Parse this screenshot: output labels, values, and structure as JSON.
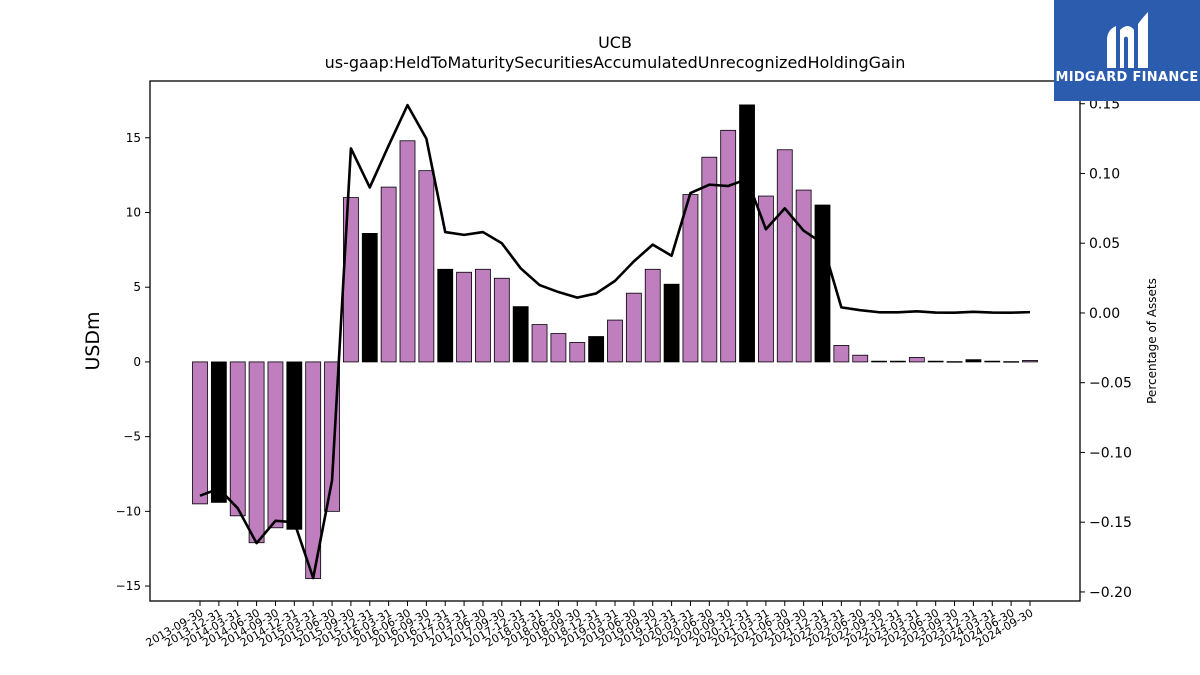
{
  "chart_data": {
    "type": "bar",
    "title": "UCB",
    "subtitle": "us-gaap:HeldToMaturitySecuritiesAccumulatedUnrecognizedHoldingGain",
    "ylabel": "USDm",
    "y2label": "Percentage of Assets",
    "ylim": [
      -16,
      18.8
    ],
    "y2lim": [
      -0.2065,
      0.1663
    ],
    "yticks": [
      -15,
      -10,
      -5,
      0,
      5,
      10,
      15
    ],
    "y2ticks": [
      -0.2,
      -0.15,
      -0.1,
      -0.05,
      0.0,
      0.05,
      0.1,
      0.15
    ],
    "y2tick_labels": [
      "−0.20",
      "−0.15",
      "−0.10",
      "−0.05",
      "0.00",
      "0.05",
      "0.10",
      "0.15"
    ],
    "ytick_labels": [
      "−15",
      "−10",
      "−5",
      "0",
      "5",
      "10",
      "15"
    ],
    "grid": false,
    "colors": {
      "bar": "#bf7fbf",
      "bar_highlight": "#000000",
      "line": "#000000"
    },
    "categories": [
      "2013-09-30",
      "2013-12-31",
      "2014-03-31",
      "2014-06-30",
      "2014-09-30",
      "2014-12-31",
      "2015-03-31",
      "2015-06-30",
      "2015-09-30",
      "2015-12-31",
      "2016-03-31",
      "2016-06-30",
      "2016-09-30",
      "2016-12-31",
      "2017-03-31",
      "2017-06-30",
      "2017-09-30",
      "2017-12-31",
      "2018-03-31",
      "2018-06-30",
      "2018-09-30",
      "2018-12-31",
      "2019-03-31",
      "2019-06-30",
      "2019-09-30",
      "2019-12-31",
      "2020-03-31",
      "2020-06-30",
      "2020-09-30",
      "2020-12-31",
      "2021-03-31",
      "2021-06-30",
      "2021-09-30",
      "2021-12-31",
      "2022-03-31",
      "2022-06-30",
      "2022-09-30",
      "2022-12-31",
      "2023-03-31",
      "2023-06-30",
      "2023-09-30",
      "2023-12-31",
      "2024-03-31",
      "2024-06-30",
      "2024-09-30"
    ],
    "values": [
      -9.5,
      -9.4,
      -10.3,
      -12.1,
      -11.1,
      -11.2,
      -14.5,
      -10.0,
      11.0,
      8.6,
      11.7,
      14.8,
      12.8,
      6.2,
      6.0,
      6.2,
      5.6,
      3.7,
      2.5,
      1.9,
      1.3,
      1.7,
      2.8,
      4.6,
      6.2,
      5.2,
      11.2,
      13.7,
      15.5,
      17.2,
      11.1,
      14.2,
      11.5,
      10.5,
      1.1,
      0.45,
      0.05,
      0.05,
      0.3,
      0.05,
      0.02,
      0.15,
      0.05,
      0.02,
      0.1
    ],
    "highlight": [
      false,
      true,
      false,
      false,
      false,
      true,
      false,
      false,
      false,
      true,
      false,
      false,
      false,
      true,
      false,
      false,
      false,
      true,
      false,
      false,
      false,
      true,
      false,
      false,
      false,
      true,
      false,
      false,
      false,
      true,
      false,
      false,
      false,
      true,
      false,
      false,
      false,
      false,
      false,
      false,
      false,
      true,
      false,
      false,
      false
    ],
    "line_series": {
      "name": "Percentage of Assets",
      "values": [
        -0.131,
        -0.126,
        -0.14,
        -0.165,
        -0.149,
        -0.15,
        -0.19,
        -0.12,
        0.118,
        0.09,
        0.12,
        0.149,
        0.125,
        0.058,
        0.056,
        0.058,
        0.05,
        0.032,
        0.02,
        0.015,
        0.011,
        0.014,
        0.023,
        0.037,
        0.049,
        0.041,
        0.086,
        0.092,
        0.091,
        0.096,
        0.06,
        0.075,
        0.059,
        0.05,
        0.004,
        0.002,
        0.0005,
        0.0005,
        0.0012,
        0.0003,
        0.0002,
        0.0008,
        0.0003,
        0.0002,
        0.0006
      ]
    }
  },
  "logo": {
    "text": "MIDGARD FINANCE",
    "bg": "#2b5cad"
  }
}
